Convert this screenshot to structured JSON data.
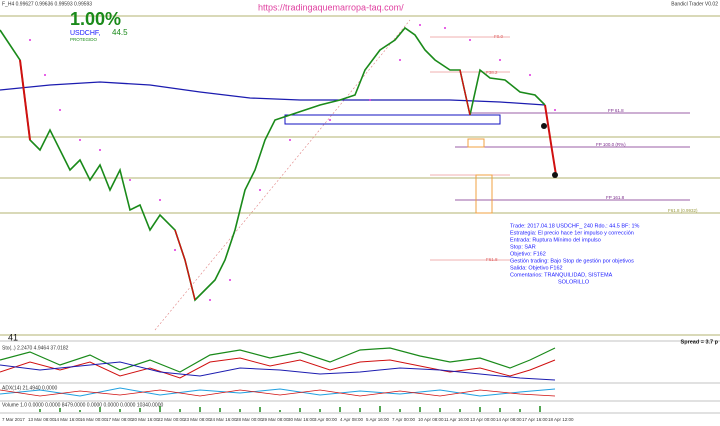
{
  "header": {
    "symbol_info": "F_H4 0.99627 0.99636 0.99593 0.99593",
    "platform": "Bandicl Trader V0.02",
    "url": "https://tradingaquemarropa-taq.com/"
  },
  "badge": {
    "percent": "1.00%",
    "symbol": "USDCHF,",
    "result": "44.5",
    "status": "PROTEGIDO"
  },
  "fib_labels": [
    "FP 61.8",
    "FP 100.0 (R%)",
    "FP 161.8",
    "F61.8 (0.9932)",
    "F38.2",
    "F61.8",
    "F0.0"
  ],
  "note": [
    "Trade: 2017.04.18 USDCHF_ 240  Rdo.: 44.5  BF: 1%",
    "Estrategia: El precio hace 1er impulso y corrección",
    "Entrada: Ruptura Mínimo del impulso",
    "Stop: SAR",
    "Objetivo: F162",
    "Gestión trading: Bajo Stop de gestión por objetivos",
    "Salida: Objetivo F162",
    "Comentarios: TRANQUILIDAD, SISTEMA",
    "SOLORILLO"
  ],
  "panels": {
    "counter": "41",
    "spread": "Spread = 3.7 p",
    "ind1": "Sto(..) 2.2470 4.9464 37.0182",
    "ind2": "ADX(14) 21.4940 0.0000",
    "ind3": "Volume 1.0 0.0000 0.0000 8479.0000 0.0000 0.0000 0.0000 10340.0000"
  },
  "dates": [
    "7 Mar 2017",
    "13 Mar 08:00",
    "14 Mar 16:00",
    "16 Mar 00:00",
    "17 Mar 08:00",
    "20 Mar 16:00",
    "22 Mar 00:00",
    "23 Mar 08:00",
    "24 Mar 16:00",
    "28 Mar 00:00",
    "29 Mar 08:00",
    "30 Mar 16:00",
    "3 Apr 00:00",
    "4 Apr 08:00",
    "5 Apr 16:00",
    "7 Apr 00:00",
    "10 Apr 08:00",
    "11 Apr 16:00",
    "13 Apr 00:00",
    "14 Apr 08:00",
    "17 Apr 16:00",
    "18 Apr 12:00"
  ]
}
